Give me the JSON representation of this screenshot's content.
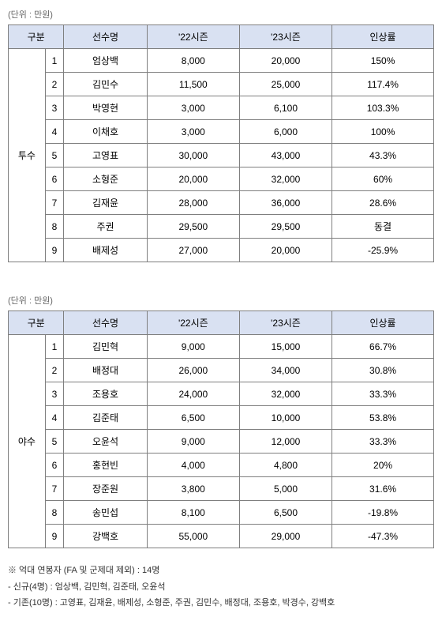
{
  "unit_label": "(단위 : 만원)",
  "headers": {
    "category": "구분",
    "player_name": "선수명",
    "season22": "'22시즌",
    "season23": "'23시즌",
    "increase_rate": "인상률"
  },
  "table1": {
    "category": "투수",
    "rows": [
      {
        "num": "1",
        "name": "엄상백",
        "s22": "8,000",
        "s23": "20,000",
        "rate": "150%"
      },
      {
        "num": "2",
        "name": "김민수",
        "s22": "11,500",
        "s23": "25,000",
        "rate": "117.4%"
      },
      {
        "num": "3",
        "name": "박영현",
        "s22": "3,000",
        "s23": "6,100",
        "rate": "103.3%"
      },
      {
        "num": "4",
        "name": "이채호",
        "s22": "3,000",
        "s23": "6,000",
        "rate": "100%"
      },
      {
        "num": "5",
        "name": "고영표",
        "s22": "30,000",
        "s23": "43,000",
        "rate": "43.3%"
      },
      {
        "num": "6",
        "name": "소형준",
        "s22": "20,000",
        "s23": "32,000",
        "rate": "60%"
      },
      {
        "num": "7",
        "name": "김재윤",
        "s22": "28,000",
        "s23": "36,000",
        "rate": "28.6%"
      },
      {
        "num": "8",
        "name": "주권",
        "s22": "29,500",
        "s23": "29,500",
        "rate": "동결"
      },
      {
        "num": "9",
        "name": "배제성",
        "s22": "27,000",
        "s23": "20,000",
        "rate": "-25.9%"
      }
    ]
  },
  "table2": {
    "category": "야수",
    "rows": [
      {
        "num": "1",
        "name": "김민혁",
        "s22": "9,000",
        "s23": "15,000",
        "rate": "66.7%"
      },
      {
        "num": "2",
        "name": "배정대",
        "s22": "26,000",
        "s23": "34,000",
        "rate": "30.8%"
      },
      {
        "num": "3",
        "name": "조용호",
        "s22": "24,000",
        "s23": "32,000",
        "rate": "33.3%"
      },
      {
        "num": "4",
        "name": "김준태",
        "s22": "6,500",
        "s23": "10,000",
        "rate": "53.8%"
      },
      {
        "num": "5",
        "name": "오윤석",
        "s22": "9,000",
        "s23": "12,000",
        "rate": "33.3%"
      },
      {
        "num": "6",
        "name": "홍현빈",
        "s22": "4,000",
        "s23": "4,800",
        "rate": "20%"
      },
      {
        "num": "7",
        "name": "장준원",
        "s22": "3,800",
        "s23": "5,000",
        "rate": "31.6%"
      },
      {
        "num": "8",
        "name": "송민섭",
        "s22": "8,100",
        "s23": "6,500",
        "rate": "-19.8%"
      },
      {
        "num": "9",
        "name": "강백호",
        "s22": "55,000",
        "s23": "29,000",
        "rate": "-47.3%"
      }
    ]
  },
  "notes": {
    "line1": "※ 억대 연봉자 (FA 및 군제대 제외) : 14명",
    "line2": "- 신규(4명) : 엄상백, 김민혁, 김준태, 오윤석",
    "line3": "- 기존(10명) : 고영표, 김재윤, 배제성, 소형준, 주권, 김민수, 배정대, 조용호, 박경수, 강백호"
  },
  "styling": {
    "header_bg": "#d9e1f2",
    "border_color": "#7f7f7f",
    "text_color": "#333333",
    "font_size": 12,
    "unit_font_size": 11,
    "notes_font_size": 11
  }
}
